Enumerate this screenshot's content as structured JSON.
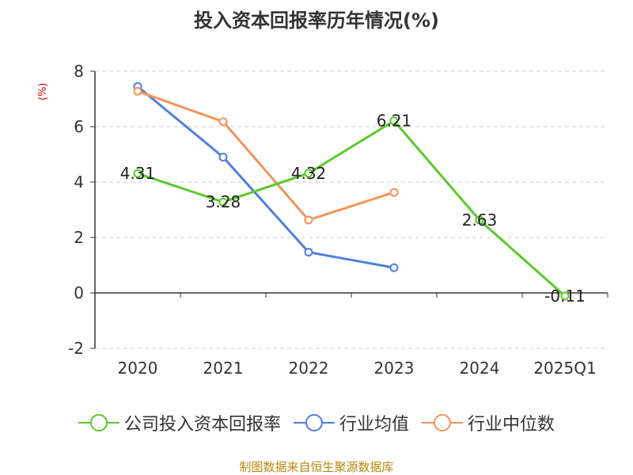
{
  "chart_data": {
    "type": "line",
    "title": "投入资本回报率历年情况(%)",
    "ylabel": "(%)",
    "categories": [
      "2020",
      "2021",
      "2022",
      "2023",
      "2024",
      "2025Q1"
    ],
    "y_ticks": [
      "8",
      "6",
      "4",
      "2",
      "0",
      "-2"
    ],
    "ylim": [
      -2,
      8
    ],
    "grid": true,
    "legend_placement": "bottom",
    "series": [
      {
        "name": "公司投入资本回报率",
        "color": "#5cc92a",
        "values": [
          4.31,
          3.28,
          4.32,
          6.21,
          2.63,
          -0.11
        ],
        "labels": [
          "4.31",
          "3.28",
          "4.32",
          "6.21",
          "2.63",
          "-0.11"
        ]
      },
      {
        "name": "行业均值",
        "color": "#4f7fde",
        "values": [
          7.45,
          4.9,
          1.47,
          0.91,
          null,
          null
        ]
      },
      {
        "name": "行业中位数",
        "color": "#f7925a",
        "values": [
          7.28,
          6.18,
          2.63,
          3.63,
          null,
          null
        ]
      }
    ]
  },
  "source": "制图数据来自恒生聚源数据库"
}
